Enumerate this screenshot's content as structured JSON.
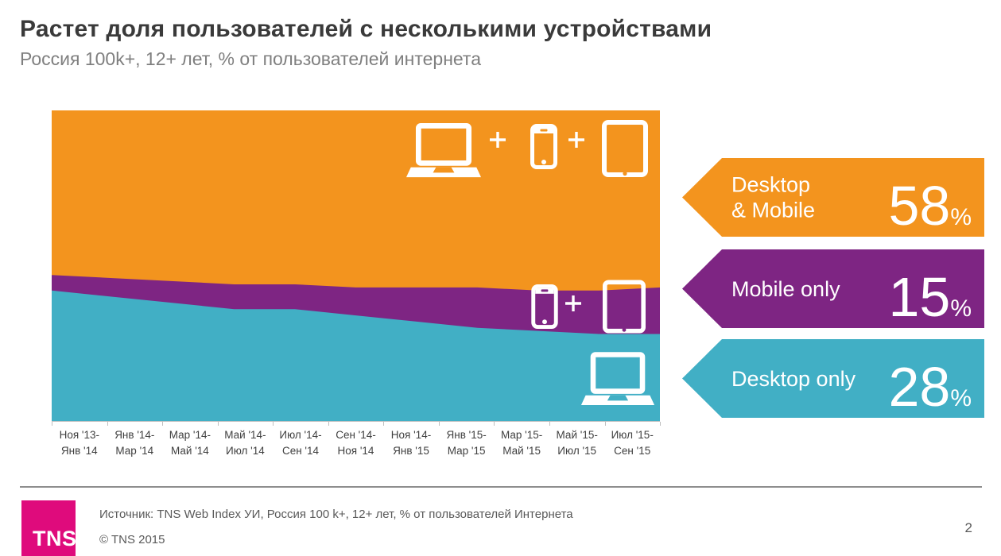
{
  "slide": {
    "title": "Растет доля пользователей с несколькими устройствами",
    "subtitle": "Россия 100k+, 12+ лет, % от пользователей интернета"
  },
  "colors": {
    "desktop_mobile": "#F3941E",
    "mobile_only": "#7E2583",
    "desktop_only": "#41AFC5",
    "logo": "#DF0B7C",
    "axis_line": "#BFBFBF",
    "axis_text": "#404040",
    "footer_text": "#595959"
  },
  "chart_data": {
    "type": "area",
    "stacked": true,
    "title": "Растет доля пользователей с несколькими устройствами",
    "subtitle": "Россия 100k+, 12+ лет, % от пользователей интернета",
    "xlabel": "",
    "ylabel": "% от пользователей интернета",
    "ylim": [
      0,
      100
    ],
    "grid": false,
    "legend_position": "right",
    "categories": [
      [
        "Ноя '13-",
        "Янв '14"
      ],
      [
        "Янв '14-",
        "Мар '14"
      ],
      [
        "Мар '14-",
        "Май '14"
      ],
      [
        "Май '14-",
        "Июл '14"
      ],
      [
        "Июл '14-",
        "Сен '14"
      ],
      [
        "Сен '14-",
        "Ноя '14"
      ],
      [
        "Ноя '14-",
        "Янв '15"
      ],
      [
        "Янв '15-",
        "Мар '15"
      ],
      [
        "Мар '15-",
        "Май '15"
      ],
      [
        "Май '15-",
        "Июл '15"
      ],
      [
        "Июл '15-",
        "Сен '15"
      ]
    ],
    "series": [
      {
        "key": "desktop_mobile",
        "name": "Desktop & Mobile",
        "color": "#F3941E",
        "values": [
          53,
          54,
          55,
          56,
          56,
          57,
          57,
          57,
          58,
          58,
          58
        ]
      },
      {
        "key": "mobile_only",
        "name": "Mobile only",
        "color": "#7E2583",
        "values": [
          5,
          6,
          7,
          8,
          8,
          9,
          11,
          13,
          13,
          14,
          15
        ]
      },
      {
        "key": "desktop_only",
        "name": "Desktop only",
        "color": "#41AFC5",
        "values": [
          42,
          40,
          38,
          36,
          36,
          34,
          32,
          30,
          29,
          28,
          28
        ]
      }
    ]
  },
  "legend": [
    {
      "key": "desktop-mobile",
      "label_lines": [
        "Desktop",
        "& Mobile"
      ],
      "value": "58",
      "unit": "%",
      "color": "#F3941E"
    },
    {
      "key": "mobile-only",
      "label_lines": [
        "Mobile only"
      ],
      "value": "15",
      "unit": "%",
      "color": "#7E2583"
    },
    {
      "key": "desktop-only",
      "label_lines": [
        "Desktop only"
      ],
      "value": "28",
      "unit": "%",
      "color": "#41AFC5"
    }
  ],
  "footer": {
    "source": "Источник: TNS Web Index УИ, Россия 100 k+, 12+ лет, % от пользователей Интернета",
    "copyright": "© TNS 2015",
    "page_number": "2",
    "logo_text": "TNS"
  }
}
